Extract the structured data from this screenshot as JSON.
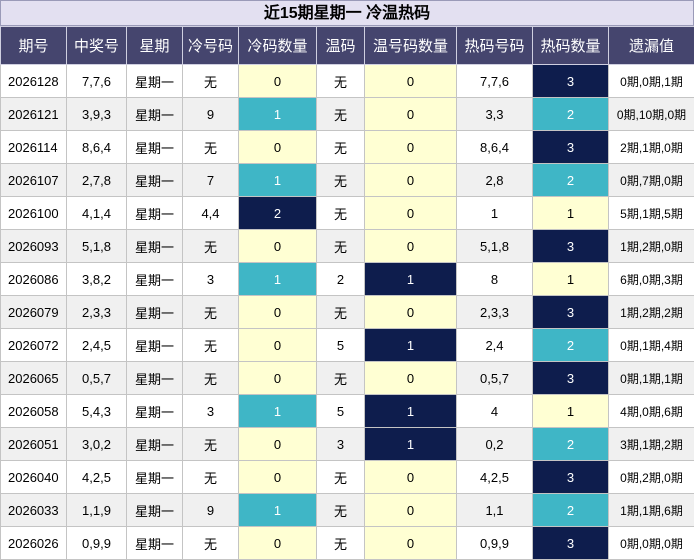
{
  "title": "近15期星期一 冷温热码",
  "headers": [
    "期号",
    "中奖号",
    "星期",
    "冷号码",
    "冷码数量",
    "温码",
    "温号码数量",
    "热码号码",
    "热码数量",
    "遗漏值"
  ],
  "rows": [
    {
      "period": "2026128",
      "nums": "7,7,6",
      "weekday": "星期一",
      "cold": "无",
      "cold_count": "0",
      "warm": "无",
      "warm_count": "0",
      "hot": "7,7,6",
      "hot_count": "3",
      "miss": "0期,0期,1期"
    },
    {
      "period": "2026121",
      "nums": "3,9,3",
      "weekday": "星期一",
      "cold": "9",
      "cold_count": "1",
      "warm": "无",
      "warm_count": "0",
      "hot": "3,3",
      "hot_count": "2",
      "miss": "0期,10期,0期"
    },
    {
      "period": "2026114",
      "nums": "8,6,4",
      "weekday": "星期一",
      "cold": "无",
      "cold_count": "0",
      "warm": "无",
      "warm_count": "0",
      "hot": "8,6,4",
      "hot_count": "3",
      "miss": "2期,1期,0期"
    },
    {
      "period": "2026107",
      "nums": "2,7,8",
      "weekday": "星期一",
      "cold": "7",
      "cold_count": "1",
      "warm": "无",
      "warm_count": "0",
      "hot": "2,8",
      "hot_count": "2",
      "miss": "0期,7期,0期"
    },
    {
      "period": "2026100",
      "nums": "4,1,4",
      "weekday": "星期一",
      "cold": "4,4",
      "cold_count": "2",
      "warm": "无",
      "warm_count": "0",
      "hot": "1",
      "hot_count": "1",
      "miss": "5期,1期,5期"
    },
    {
      "period": "2026093",
      "nums": "5,1,8",
      "weekday": "星期一",
      "cold": "无",
      "cold_count": "0",
      "warm": "无",
      "warm_count": "0",
      "hot": "5,1,8",
      "hot_count": "3",
      "miss": "1期,2期,0期"
    },
    {
      "period": "2026086",
      "nums": "3,8,2",
      "weekday": "星期一",
      "cold": "3",
      "cold_count": "1",
      "warm": "2",
      "warm_count": "1",
      "hot": "8",
      "hot_count": "1",
      "miss": "6期,0期,3期"
    },
    {
      "period": "2026079",
      "nums": "2,3,3",
      "weekday": "星期一",
      "cold": "无",
      "cold_count": "0",
      "warm": "无",
      "warm_count": "0",
      "hot": "2,3,3",
      "hot_count": "3",
      "miss": "1期,2期,2期"
    },
    {
      "period": "2026072",
      "nums": "2,4,5",
      "weekday": "星期一",
      "cold": "无",
      "cold_count": "0",
      "warm": "5",
      "warm_count": "1",
      "hot": "2,4",
      "hot_count": "2",
      "miss": "0期,1期,4期"
    },
    {
      "period": "2026065",
      "nums": "0,5,7",
      "weekday": "星期一",
      "cold": "无",
      "cold_count": "0",
      "warm": "无",
      "warm_count": "0",
      "hot": "0,5,7",
      "hot_count": "3",
      "miss": "0期,1期,1期"
    },
    {
      "period": "2026058",
      "nums": "5,4,3",
      "weekday": "星期一",
      "cold": "3",
      "cold_count": "1",
      "warm": "5",
      "warm_count": "1",
      "hot": "4",
      "hot_count": "1",
      "miss": "4期,0期,6期"
    },
    {
      "period": "2026051",
      "nums": "3,0,2",
      "weekday": "星期一",
      "cold": "无",
      "cold_count": "0",
      "warm": "3",
      "warm_count": "1",
      "hot": "0,2",
      "hot_count": "2",
      "miss": "3期,1期,2期"
    },
    {
      "period": "2026040",
      "nums": "4,2,5",
      "weekday": "星期一",
      "cold": "无",
      "cold_count": "0",
      "warm": "无",
      "warm_count": "0",
      "hot": "4,2,5",
      "hot_count": "3",
      "miss": "0期,2期,0期"
    },
    {
      "period": "2026033",
      "nums": "1,1,9",
      "weekday": "星期一",
      "cold": "9",
      "cold_count": "1",
      "warm": "无",
      "warm_count": "0",
      "hot": "1,1",
      "hot_count": "2",
      "miss": "1期,1期,6期"
    },
    {
      "period": "2026026",
      "nums": "0,9,9",
      "weekday": "星期一",
      "cold": "无",
      "cold_count": "0",
      "warm": "无",
      "warm_count": "0",
      "hot": "0,9,9",
      "hot_count": "3",
      "miss": "0期,0期,0期"
    }
  ],
  "colors": {
    "header_bg": "#45456e",
    "title_bg": "#e3e0f1",
    "light_yellow": "#ffffd3",
    "teal": "#3fb6c6",
    "navy": "#0e1d4d"
  }
}
